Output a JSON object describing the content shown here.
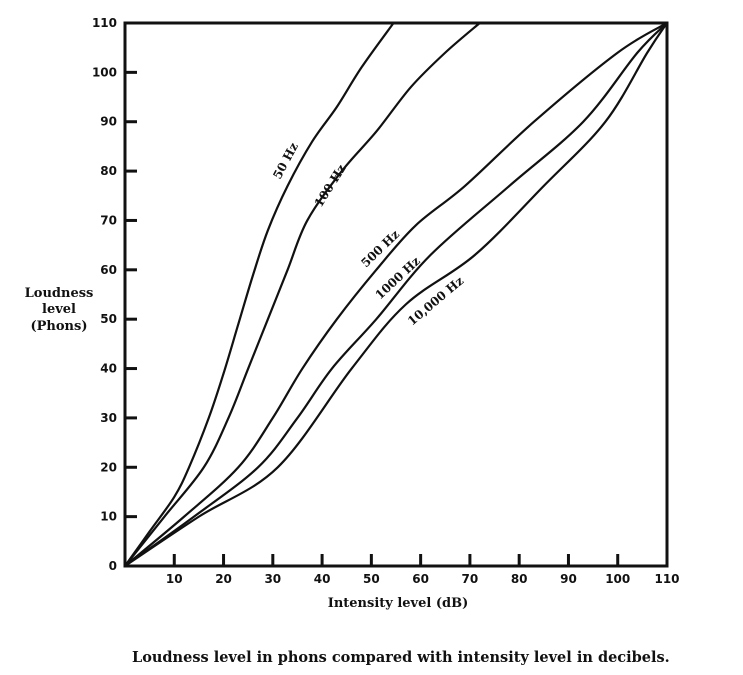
{
  "chart_data": {
    "type": "line",
    "title": "",
    "caption": "Loudness level in phons compared with intensity level in decibels.",
    "xlabel": "Intensity level (dB)",
    "ylabel_lines": [
      "Loudness",
      "level",
      "(Phons)"
    ],
    "xlim": [
      0,
      110
    ],
    "ylim": [
      0,
      110
    ],
    "x_ticks": [
      "10",
      "20",
      "30",
      "40",
      "50",
      "60",
      "70",
      "80",
      "90",
      "100",
      "110"
    ],
    "y_ticks": [
      "0",
      "10",
      "20",
      "30",
      "40",
      "50",
      "60",
      "70",
      "80",
      "90",
      "100",
      "110"
    ],
    "grid": false,
    "legend": "none (curves labeled inline)",
    "series": [
      {
        "name": "50 Hz",
        "points": [
          [
            0,
            0
          ],
          [
            5,
            7
          ],
          [
            10,
            14
          ],
          [
            13,
            20
          ],
          [
            17,
            30
          ],
          [
            20,
            39
          ],
          [
            23,
            49
          ],
          [
            26,
            59
          ],
          [
            29,
            68
          ],
          [
            33,
            77
          ],
          [
            38,
            86
          ],
          [
            43,
            93
          ],
          [
            48,
            101
          ],
          [
            54.5,
            110
          ]
        ]
      },
      {
        "name": "100 Hz",
        "points": [
          [
            0,
            0
          ],
          [
            8,
            10
          ],
          [
            16,
            20
          ],
          [
            21,
            30
          ],
          [
            25,
            40
          ],
          [
            29,
            50
          ],
          [
            33,
            60
          ],
          [
            37,
            70
          ],
          [
            44,
            80
          ],
          [
            51,
            88
          ],
          [
            58,
            97
          ],
          [
            65,
            104
          ],
          [
            72,
            110
          ]
        ]
      },
      {
        "name": "500 Hz",
        "points": [
          [
            0,
            0
          ],
          [
            12,
            10
          ],
          [
            23,
            20
          ],
          [
            30,
            30
          ],
          [
            36,
            40
          ],
          [
            43,
            50
          ],
          [
            51,
            60
          ],
          [
            59,
            69
          ],
          [
            69,
            77
          ],
          [
            83,
            90
          ],
          [
            100,
            104
          ],
          [
            110,
            110
          ]
        ]
      },
      {
        "name": "1000 Hz",
        "points": [
          [
            0,
            0
          ],
          [
            14,
            10
          ],
          [
            27,
            20
          ],
          [
            35,
            30
          ],
          [
            42,
            40
          ],
          [
            51,
            50
          ],
          [
            62,
            63
          ],
          [
            78,
            77
          ],
          [
            93,
            90
          ],
          [
            104,
            104
          ],
          [
            110,
            110
          ]
        ]
      },
      {
        "name": "10,000 Hz",
        "points": [
          [
            0,
            0
          ],
          [
            15,
            10
          ],
          [
            31,
            20
          ],
          [
            46,
            40
          ],
          [
            57,
            53
          ],
          [
            71,
            63
          ],
          [
            85,
            77
          ],
          [
            97.5,
            90
          ],
          [
            106,
            104
          ],
          [
            110,
            110
          ]
        ]
      }
    ],
    "line_color": "#111111"
  }
}
